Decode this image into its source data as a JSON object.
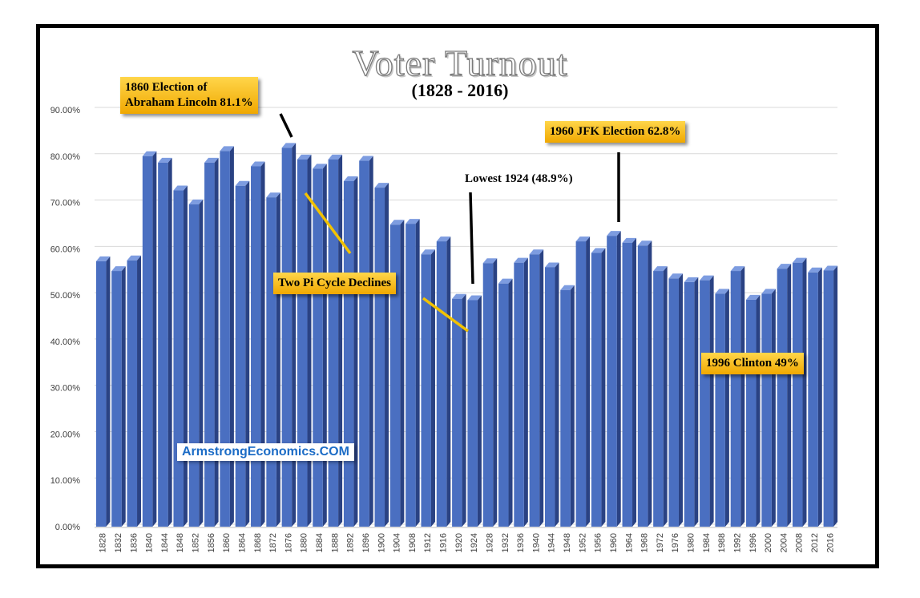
{
  "chart_data": {
    "type": "bar",
    "title": "Voter Turnout",
    "subtitle": "(1828 - 2016)",
    "ylim": [
      0,
      0.9
    ],
    "y_tick_labels": [
      "0.00%",
      "10.00%",
      "20.00%",
      "30.00%",
      "40.00%",
      "50.00%",
      "60.00%",
      "70.00%",
      "80.00%",
      "90.00%"
    ],
    "grid": true,
    "legend": "none",
    "categories": [
      "1828",
      "1832",
      "1836",
      "1840",
      "1844",
      "1848",
      "1852",
      "1856",
      "1860",
      "1864",
      "1868",
      "1872",
      "1876",
      "1880",
      "1884",
      "1888",
      "1892",
      "1896",
      "1900",
      "1904",
      "1908",
      "1912",
      "1916",
      "1920",
      "1924",
      "1928",
      "1932",
      "1936",
      "1940",
      "1944",
      "1948",
      "1952",
      "1956",
      "1960",
      "1964",
      "1968",
      "1972",
      "1976",
      "1980",
      "1984",
      "1988",
      "1992",
      "1996",
      "2000",
      "2004",
      "2008",
      "2012",
      "2016"
    ],
    "x_tick_labels": [
      "1828",
      "1832",
      "1836",
      "1840",
      "1844",
      "1848",
      "1852",
      "1856",
      "1860",
      "1864",
      "1868",
      "1872",
      "1876",
      "1880",
      "1884",
      "1888",
      "1892",
      "1896",
      "1900",
      "1904",
      "1908",
      "1912",
      "1916",
      "1920",
      "1924",
      "1928",
      "1932",
      "1936",
      "1940",
      "1944",
      "1948",
      "1952",
      "1956",
      "1960",
      "1964",
      "1968",
      "1972",
      "1976",
      "1980",
      "1984",
      "1988",
      "1992",
      "1996",
      "2000",
      "2004",
      "2008",
      "2012",
      "2016"
    ],
    "values": [
      0.573,
      0.552,
      0.575,
      0.8,
      0.786,
      0.726,
      0.696,
      0.786,
      0.811,
      0.736,
      0.778,
      0.711,
      0.818,
      0.793,
      0.773,
      0.793,
      0.746,
      0.79,
      0.732,
      0.652,
      0.654,
      0.588,
      0.616,
      0.492,
      0.489,
      0.569,
      0.525,
      0.57,
      0.588,
      0.56,
      0.511,
      0.616,
      0.591,
      0.628,
      0.613,
      0.607,
      0.552,
      0.536,
      0.528,
      0.532,
      0.503,
      0.552,
      0.49,
      0.503,
      0.557,
      0.57,
      0.549,
      0.553
    ],
    "annotations": [
      "1860 Election of",
      "Abraham Lincoln 81.1%",
      "1960 JFK Election 62.8%",
      "Lowest 1924 (48.9%)",
      "Two Pi Cycle Declines",
      "1996 Clinton 49%"
    ],
    "watermark": "ArmstrongEconomics.COM"
  },
  "colors": {
    "bar_front": "#4a6fc1",
    "bar_side": "#2a4283",
    "bar_top": "#7d9ce0",
    "grid": "#d9d9d9",
    "callout": "#f5b800",
    "decline_line": "#f2c200",
    "pointer_line": "#000000",
    "watermark_text": "#1c6cc6"
  }
}
